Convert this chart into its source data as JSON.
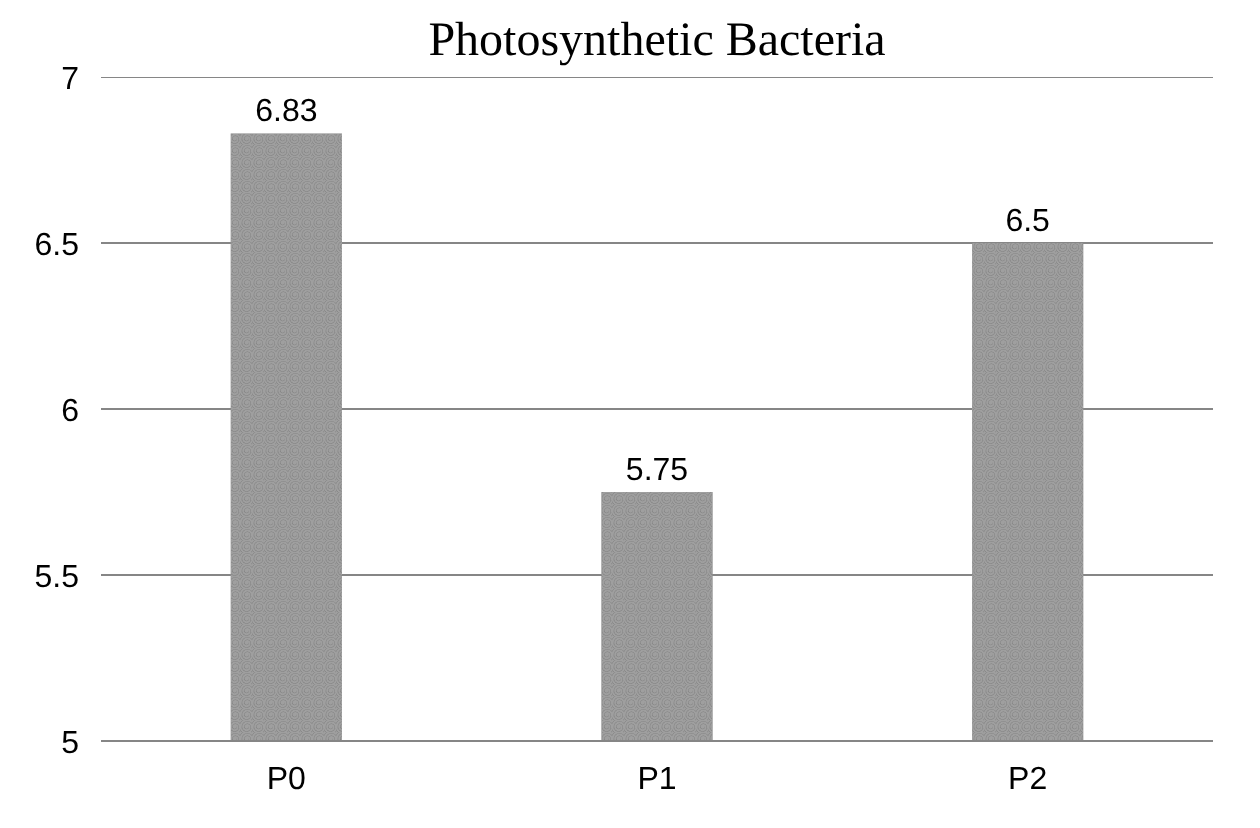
{
  "chart_data": {
    "type": "bar",
    "title": "Photosynthetic Bacteria",
    "categories": [
      "P0",
      "P1",
      "P2"
    ],
    "values": [
      6.83,
      5.75,
      6.5
    ],
    "color": "#7f7f7f",
    "ylim": [
      5,
      7
    ],
    "yticks": [
      5,
      5.5,
      6,
      6.5,
      7
    ],
    "grid": "y",
    "data_labels": true
  }
}
